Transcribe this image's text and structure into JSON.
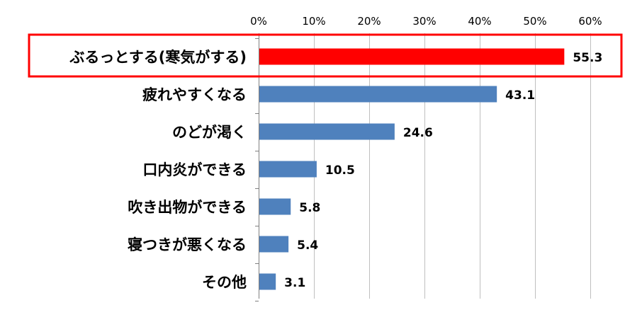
{
  "chart_data": {
    "type": "bar",
    "orientation": "horizontal",
    "categories": [
      "ぶるっとする(寒気がする)",
      "疲れやすくなる",
      "のどが渇く",
      "口内炎ができる",
      "吹き出物ができる",
      "寝つきが悪くなる",
      "その他"
    ],
    "values": [
      55.3,
      43.1,
      24.6,
      10.5,
      5.8,
      5.4,
      3.1
    ],
    "value_labels": [
      "55.3",
      "43.1",
      "24.6",
      "10.5",
      "5.8",
      "5.4",
      "3.1"
    ],
    "xlim": [
      0,
      60
    ],
    "x_ticks": [
      0,
      10,
      20,
      30,
      40,
      50,
      60
    ],
    "x_tick_labels": [
      "0%",
      "10%",
      "20%",
      "30%",
      "40%",
      "50%",
      "60%"
    ],
    "axis_position": "top",
    "grid": true,
    "highlight_index": 0,
    "colors": {
      "bar": "#4f81bd",
      "highlight_bar": "#ff0000",
      "highlight_box": "#ff0000",
      "grid": "#bfbfbf",
      "axis": "#808080"
    }
  }
}
